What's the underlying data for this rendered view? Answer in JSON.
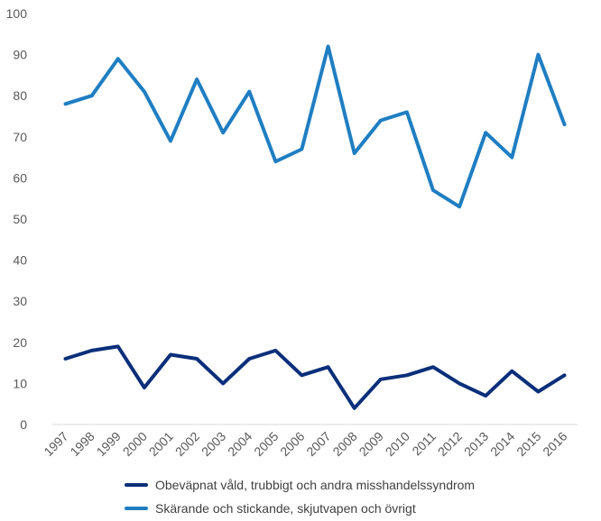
{
  "chart_data": {
    "type": "line",
    "title": "",
    "xlabel": "",
    "ylabel": "",
    "categories": [
      "1997",
      "1998",
      "1999",
      "2000",
      "2001",
      "2002",
      "2003",
      "2004",
      "2005",
      "2006",
      "2007",
      "2008",
      "2009",
      "2010",
      "2011",
      "2012",
      "2013",
      "2014",
      "2015",
      "2016"
    ],
    "ylim": [
      0,
      100
    ],
    "yticks": [
      0,
      10,
      20,
      30,
      40,
      50,
      60,
      70,
      80,
      90,
      100
    ],
    "grid": false,
    "legend_position": "bottom",
    "series": [
      {
        "name": "Obeväpnat våld, trubbigt och andra misshandelssyndrom",
        "color": "#0A2F7A",
        "values": [
          16,
          18,
          19,
          9,
          17,
          16,
          10,
          16,
          18,
          12,
          14,
          4,
          11,
          12,
          14,
          10,
          7,
          13,
          8,
          12
        ]
      },
      {
        "name": "Skärande och stickande, skjutvapen och övrigt",
        "color": "#1F7EC2",
        "values": [
          78,
          80,
          89,
          81,
          69,
          84,
          71,
          81,
          64,
          67,
          92,
          66,
          74,
          76,
          57,
          53,
          71,
          65,
          90,
          73
        ]
      }
    ]
  }
}
